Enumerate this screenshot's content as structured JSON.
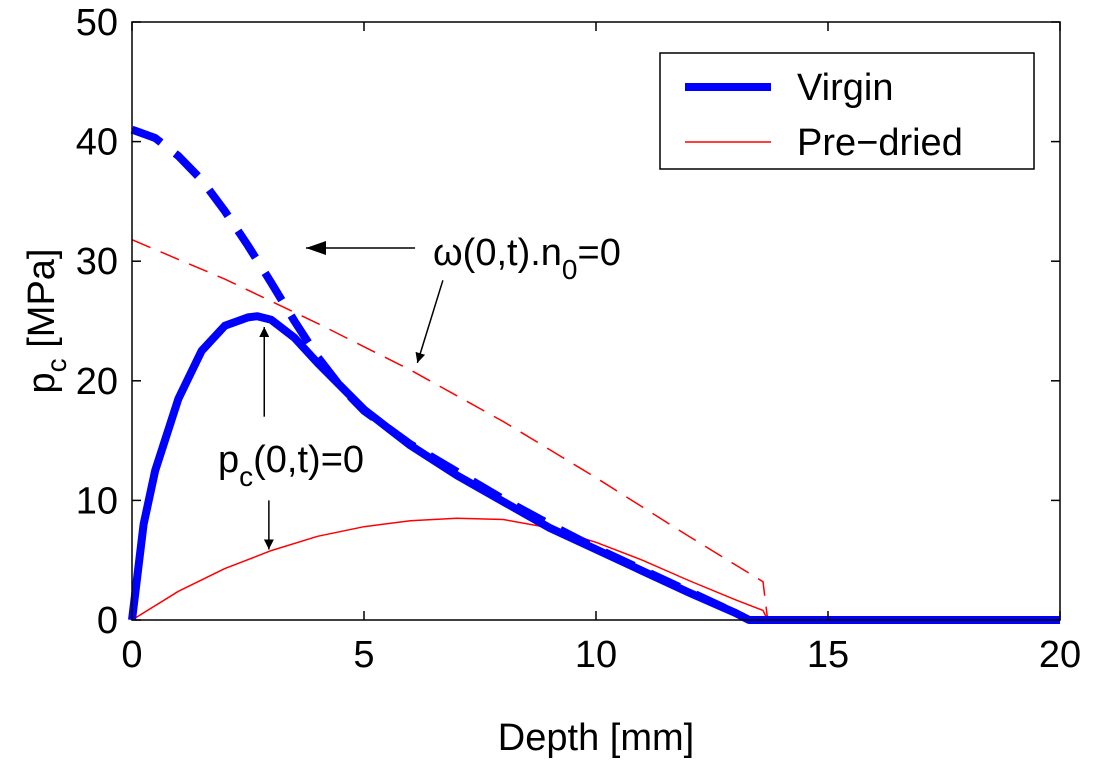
{
  "chart_data": {
    "type": "line",
    "xlabel": "Depth [mm]",
    "ylabel": "p",
    "ylabel_sub": "c",
    "ylabel_unit": " [MPa]",
    "xlim": [
      0,
      20
    ],
    "ylim": [
      0,
      50
    ],
    "xticks": [
      0,
      5,
      10,
      15,
      20
    ],
    "yticks": [
      0,
      10,
      20,
      30,
      40,
      50
    ],
    "grid": false,
    "legend_position": "top-right",
    "legend": [
      {
        "label": "Virgin",
        "color": "#0000ff",
        "style": "thick-solid"
      },
      {
        "label": "Pre−dried",
        "color": "#ff0000",
        "style": "thin-solid"
      }
    ],
    "series": [
      {
        "legend_label": "Virgin",
        "line": "solid",
        "weight": "thick",
        "color": "#0000ff",
        "x": [
          0,
          0.25,
          0.5,
          1,
          1.5,
          2,
          2.5,
          2.7,
          3,
          3.5,
          4,
          5,
          6,
          7,
          8,
          9,
          10,
          11,
          12,
          13,
          13.3,
          14,
          16,
          18,
          20
        ],
        "y": [
          0,
          8,
          12.5,
          18.5,
          22.5,
          24.6,
          25.3,
          25.4,
          25.1,
          23.6,
          21.5,
          17.6,
          14.6,
          12.1,
          9.9,
          7.7,
          5.9,
          4.1,
          2.3,
          0.6,
          0,
          0,
          0,
          0,
          0
        ]
      },
      {
        "legend_label": "Virgin",
        "line": "dashed",
        "weight": "thick",
        "color": "#0000ff",
        "x": [
          0,
          0.5,
          1,
          1.5,
          2,
          2.5,
          3,
          3.5,
          4,
          4.5,
          5,
          6,
          7,
          8,
          9,
          10,
          11,
          12,
          13,
          13.3
        ],
        "y": [
          41,
          40.3,
          38.8,
          36.8,
          34.2,
          31.3,
          28.2,
          25,
          22,
          19.5,
          17.5,
          14.7,
          12.4,
          10.1,
          8,
          6,
          4.2,
          2.4,
          0.6,
          0
        ]
      },
      {
        "legend_label": "Pre−dried",
        "line": "solid",
        "weight": "thin",
        "color": "#ff0000",
        "x": [
          0,
          1,
          2,
          3,
          4,
          5,
          6,
          7,
          8,
          9,
          10,
          11,
          12,
          13,
          13.6,
          13.7,
          20
        ],
        "y": [
          0,
          2.4,
          4.3,
          5.8,
          7,
          7.8,
          8.3,
          8.5,
          8.4,
          7.7,
          6.5,
          5,
          3.3,
          1.7,
          0.8,
          0,
          0
        ]
      },
      {
        "legend_label": "Pre−dried",
        "line": "dashed",
        "weight": "thin",
        "color": "#ff0000",
        "x": [
          0,
          2,
          4,
          6,
          8,
          10,
          12,
          13.6,
          13.7,
          20
        ],
        "y": [
          31.8,
          28.5,
          24.8,
          20.9,
          16.6,
          11.9,
          7,
          3.2,
          0,
          0
        ]
      }
    ],
    "annotations": [
      {
        "text": "ω(0,t).n",
        "sub": "0",
        "tail": "=0",
        "arrows": [
          {
            "from": [
              6.1,
              31.1
            ],
            "to": [
              3.75,
              31.1
            ]
          },
          {
            "from": [
              6.7,
              28.4
            ],
            "to": [
              6.15,
              21.5
            ]
          }
        ]
      },
      {
        "text": "p",
        "sub": "c",
        "tail": "(0,t)=0",
        "arrows": [
          {
            "from": [
              2.85,
              17
            ],
            "to": [
              2.85,
              24.5
            ]
          },
          {
            "from": [
              2.95,
              10
            ],
            "to": [
              2.95,
              5.9
            ]
          }
        ]
      }
    ]
  }
}
